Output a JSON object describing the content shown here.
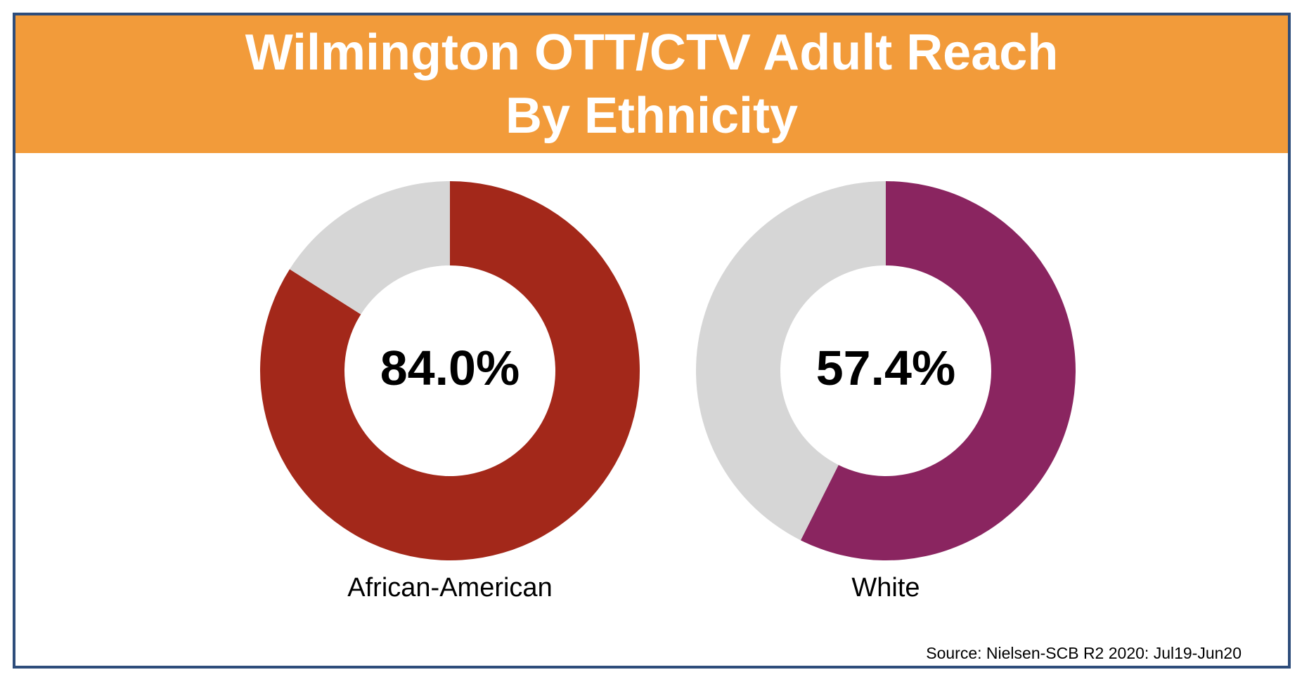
{
  "title": {
    "line1": "Wilmington OTT/CTV Adult Reach",
    "line2": "By Ethnicity"
  },
  "source": "Source: Nielsen-SCB R2 2020: Jul19-Jun20",
  "colors": {
    "header": "#f29b3a",
    "border": "#2e4d7b",
    "remainder": "#d6d6d6",
    "african_american": "#a3281a",
    "white": "#8a2560"
  },
  "chart_data": [
    {
      "type": "pie",
      "variant": "donut",
      "category": "African-American",
      "value": 84.0,
      "value_label": "84.0%",
      "remainder": 16.0,
      "color": "#a3281a"
    },
    {
      "type": "pie",
      "variant": "donut",
      "category": "White",
      "value": 57.4,
      "value_label": "57.4%",
      "remainder": 42.6,
      "color": "#8a2560"
    }
  ]
}
